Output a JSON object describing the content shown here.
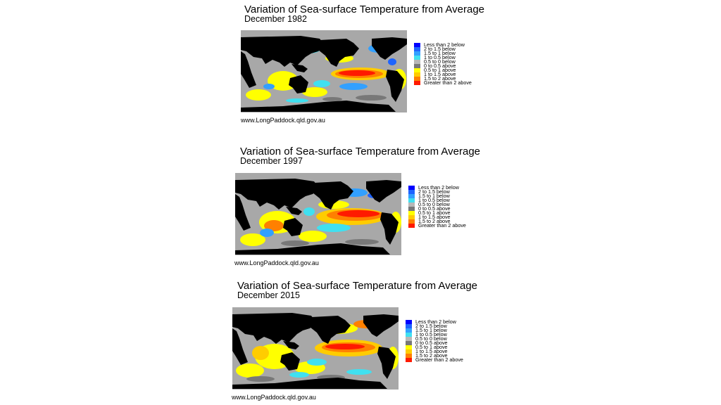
{
  "legend_items": [
    {
      "label": "Less than 2 below",
      "color": "#0000ff"
    },
    {
      "label": "2 to 1.5 below",
      "color": "#1e64ff"
    },
    {
      "label": "1.5 to 1 below",
      "color": "#32a0ff"
    },
    {
      "label": "1 to 0.5 below",
      "color": "#40e0f0"
    },
    {
      "label": "0.5 to 0 below",
      "color": "#b8b8b8"
    },
    {
      "label": "0 to 0.5 above",
      "color": "#787878"
    },
    {
      "label": "0.5 to 1 above",
      "color": "#ffff00"
    },
    {
      "label": "1 to 1.5 above",
      "color": "#ffcc00"
    },
    {
      "label": "1.5 to 2 above",
      "color": "#ff8000"
    },
    {
      "label": "Greater than 2 above",
      "color": "#ff1a00"
    }
  ],
  "colors": {
    "land": "#000000",
    "ocean_base": "#a8a8a8"
  },
  "panels": [
    {
      "title": "Variation of Sea-surface Temperature from Average",
      "subtitle": "December 1982",
      "source": "www.LongPaddock.qld.gov.au"
    },
    {
      "title": "Variation of Sea-surface Temperature from Average",
      "subtitle": "December 1997",
      "source": "www.LongPaddock.qld.gov.au"
    },
    {
      "title": "Variation of Sea-surface Temperature from Average",
      "subtitle": "December 2015",
      "source": "www.LongPaddock.qld.gov.au"
    }
  ]
}
